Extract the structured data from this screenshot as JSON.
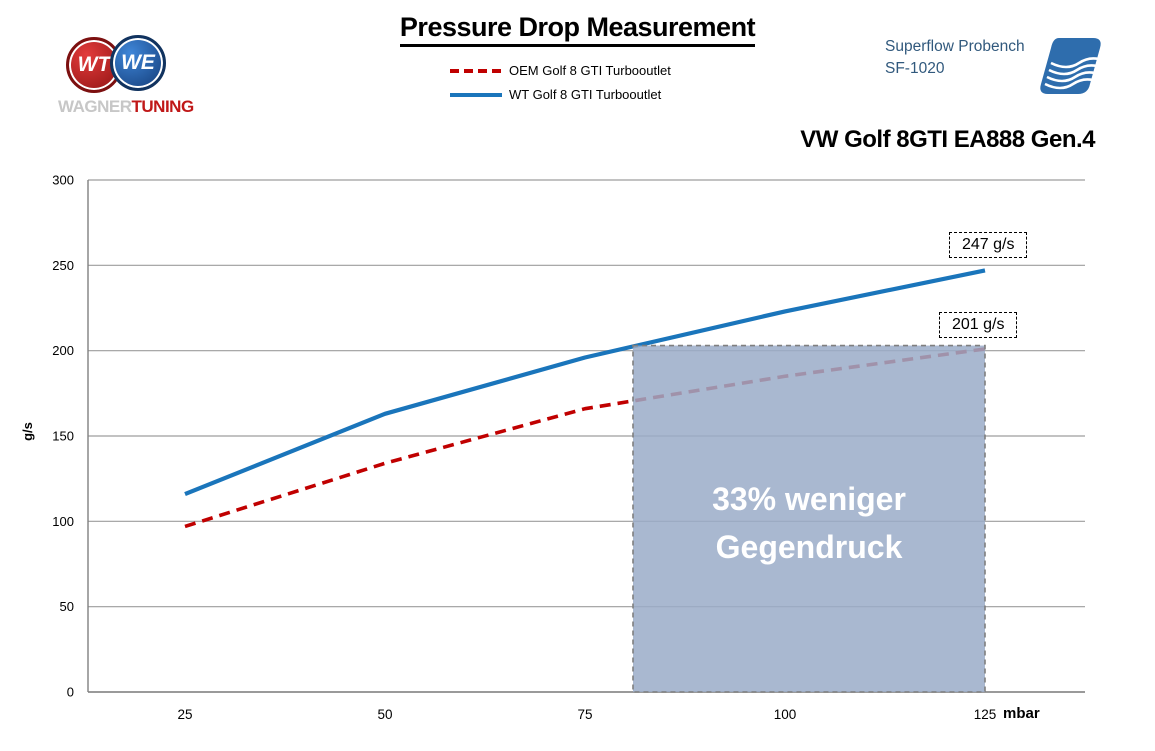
{
  "header": {
    "title": "Pressure Drop Measurement",
    "legend": [
      {
        "label": "OEM Golf 8  GTI Turbooutlet",
        "color": "#c00000",
        "style": "dashed"
      },
      {
        "label": "WT Golf 8 GTI Turbooutlet",
        "color": "#1a75bb",
        "style": "solid"
      }
    ]
  },
  "branding": {
    "wagner": {
      "monogram_left": "WT",
      "monogram_right": "WE",
      "name_gray": "WAGNER",
      "name_red": "TUNING"
    },
    "superflow": {
      "line1": "Superflow Probench",
      "line2": "SF-1020"
    }
  },
  "chart_data": {
    "type": "line",
    "title": "VW Golf 8GTI EA888 Gen.4",
    "x": [
      25,
      50,
      75,
      100,
      125
    ],
    "xlabel": "mbar",
    "ylabel": "g/s",
    "ylim": [
      0,
      300
    ],
    "yticks": [
      0,
      50,
      100,
      150,
      200,
      250,
      300
    ],
    "grid": "horizontal",
    "legend_position": "top-center",
    "series": [
      {
        "name": "OEM Golf 8 GTI Turbooutlet",
        "color": "#c00000",
        "dash": true,
        "values": [
          97,
          134,
          166,
          185,
          201
        ]
      },
      {
        "name": "WT Golf 8 GTI Turbooutlet",
        "color": "#1a75bb",
        "dash": false,
        "values": [
          116,
          163,
          196,
          223,
          247
        ]
      }
    ],
    "annotations": [
      {
        "text": "247 g/s",
        "series": "WT",
        "x": 125,
        "y": 247
      },
      {
        "text": "201 g/s",
        "series": "OEM",
        "x": 125,
        "y": 201
      }
    ],
    "highlight": {
      "x_from": 81,
      "x_to": 125,
      "y_from": 0,
      "y_to": 203,
      "fill": "#9aacc8",
      "border": "#7f7f7f",
      "lines": [
        "33% weniger",
        "Gegendruck"
      ]
    }
  }
}
